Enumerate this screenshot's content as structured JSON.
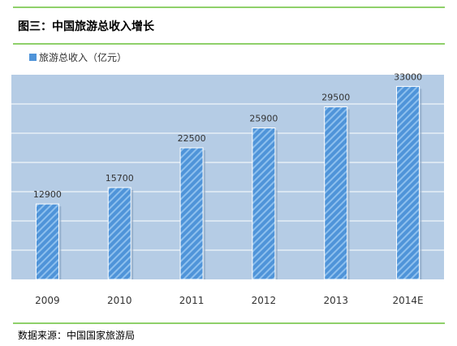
{
  "title": "图三：中国旅游总收入增长",
  "source": "数据来源：中国国家旅游局",
  "chart_data": {
    "type": "bar",
    "categories": [
      "2009",
      "2010",
      "2011",
      "2012",
      "2013",
      "2014E"
    ],
    "series": [
      {
        "name": "旅游总收入（亿元）",
        "values": [
          12900,
          15700,
          22500,
          25900,
          29500,
          33000
        ]
      }
    ],
    "data_labels": [
      "12900",
      "15700",
      "22500",
      "25900",
      "29500",
      "33000"
    ],
    "ylim": [
      0,
      35000
    ],
    "grid": true,
    "legend_position": "top-left",
    "colors": {
      "bar": "#4f94d9",
      "bar_stripe": "#8ec0ee",
      "plot_bg": "#b5cce5",
      "grid": "#ffffff",
      "rule": "#8fd06a"
    }
  }
}
